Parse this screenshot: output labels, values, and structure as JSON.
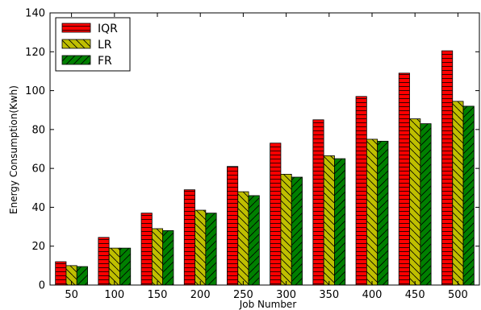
{
  "chart_data": {
    "type": "bar",
    "title": "",
    "xlabel": "Job Number",
    "ylabel": "Energy Consumption(Kwh)",
    "categories": [
      "50",
      "100",
      "150",
      "200",
      "250",
      "300",
      "350",
      "400",
      "450",
      "500"
    ],
    "ylim": [
      0,
      140
    ],
    "yticks": [
      0,
      20,
      40,
      60,
      80,
      100,
      120,
      140
    ],
    "grid": false,
    "legend_position": "top-left",
    "series": [
      {
        "name": "IQR",
        "color": "#ff0000",
        "hatch": "horizontal",
        "values": [
          12,
          24.5,
          37,
          49,
          61,
          73,
          85,
          97,
          109,
          120.5
        ]
      },
      {
        "name": "LR",
        "color": "#bfbf00",
        "hatch": "back-diagonal",
        "values": [
          10,
          19,
          29,
          38.5,
          48,
          57,
          66.5,
          75,
          85.5,
          94.5
        ]
      },
      {
        "name": "FR",
        "color": "#008000",
        "hatch": "forward-diagonal",
        "values": [
          9.5,
          19,
          28,
          37,
          46,
          55.5,
          65,
          74,
          83,
          92
        ]
      }
    ]
  }
}
